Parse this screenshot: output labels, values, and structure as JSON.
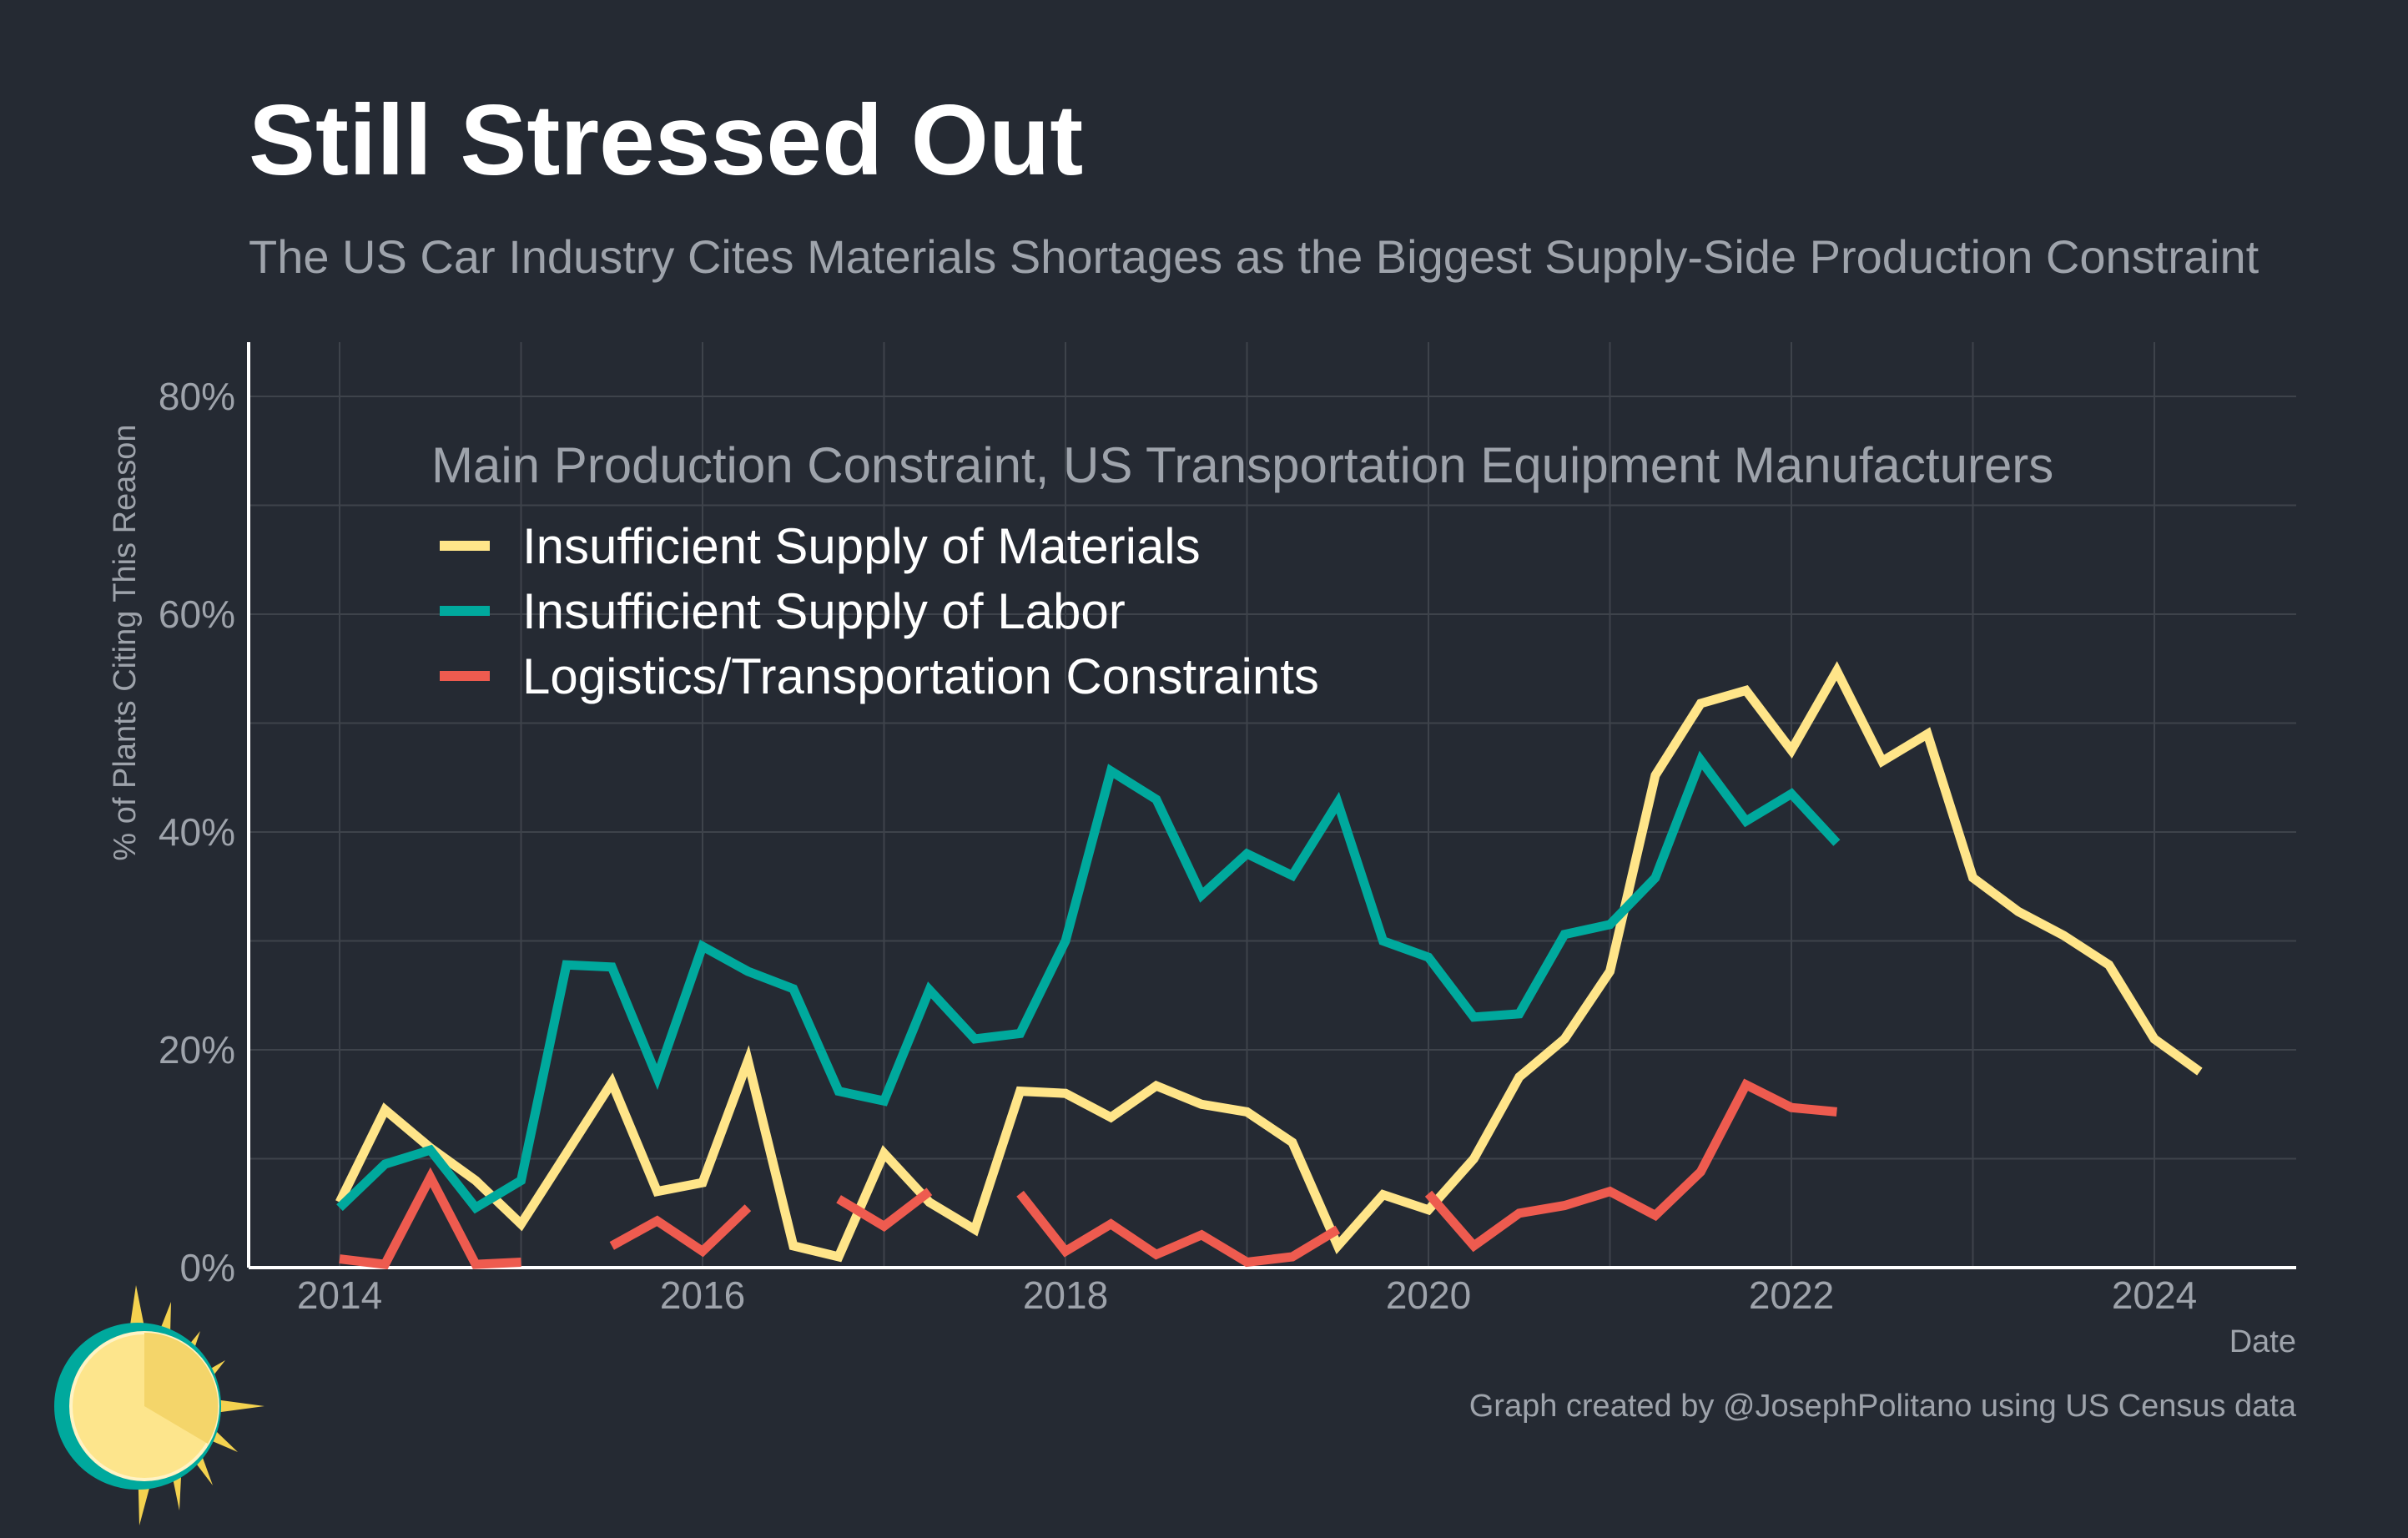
{
  "title": "Still Stressed Out",
  "subtitle": "The US Car Industry Cites Materials Shortages as the Biggest Supply-Side Production Constraint",
  "caption": "Graph created by @JosephPolitano using US Census data",
  "colors": {
    "background": "#252a33",
    "materials": "#ffe589",
    "labor": "#00a99d",
    "logistics": "#ee5b4f",
    "grid": "#3e434b",
    "axis": "#ffffff",
    "muted": "#9ea3ab"
  },
  "icons": {
    "logo": "sun-logo-icon"
  },
  "chart_data": {
    "type": "line",
    "title": "",
    "xlabel": "Date",
    "ylabel": "% of Plants Citing This Reason",
    "xlim": [
      2013.5,
      2024.75
    ],
    "ylim": [
      0,
      0.85
    ],
    "x_ticks": [
      2014,
      2016,
      2018,
      2020,
      2022,
      2024
    ],
    "x_tick_labels": [
      "2014",
      "2016",
      "2018",
      "2020",
      "2022",
      "2024"
    ],
    "y_ticks": [
      0,
      0.2,
      0.4,
      0.6,
      0.8
    ],
    "y_tick_labels": [
      "0%",
      "20%",
      "40%",
      "60%",
      "80%"
    ],
    "grid": true,
    "legend": {
      "title": "Main Production Constraint, US Transportation Equipment Manufacturers",
      "position": "top-left"
    },
    "series": [
      {
        "name": "Insufficient Supply of Materials",
        "color": "#ffe589",
        "x": [
          2014,
          2014.25,
          2014.5,
          2014.75,
          2015,
          2015.25,
          2015.5,
          2015.75,
          2016,
          2016.25,
          2016.5,
          2016.75,
          2017,
          2017.25,
          2017.5,
          2017.75,
          2018,
          2018.25,
          2018.5,
          2018.75,
          2019,
          2019.25,
          2019.5,
          2019.75,
          2020,
          2020.25,
          2020.5,
          2020.75,
          2021,
          2021.25,
          2021.5,
          2021.75,
          2022,
          2022.25,
          2022.5,
          2022.75,
          2023,
          2023.25,
          2023.5,
          2023.75,
          2024,
          2024.25
        ],
        "y": [
          0.06,
          0.145,
          0.11,
          0.08,
          0.04,
          0.105,
          0.17,
          0.07,
          0.078,
          0.19,
          0.02,
          0.01,
          0.105,
          0.06,
          0.035,
          0.162,
          0.16,
          0.138,
          0.167,
          0.15,
          0.143,
          0.115,
          0.02,
          0.067,
          0.053,
          0.1,
          0.175,
          0.21,
          0.272,
          0.452,
          0.518,
          0.53,
          0.475,
          0.548,
          0.465,
          0.49,
          0.358,
          0.327,
          0.305,
          0.278,
          0.21,
          0.18
        ]
      },
      {
        "name": "Insufficient Supply of Labor",
        "color": "#00a99d",
        "x": [
          2014,
          2014.25,
          2014.5,
          2014.75,
          2015,
          2015.25,
          2015.5,
          2015.75,
          2016,
          2016.25,
          2016.5,
          2016.75,
          2017,
          2017.25,
          2017.5,
          2017.75,
          2018,
          2018.25,
          2018.5,
          2018.75,
          2019,
          2019.25,
          2019.5,
          2019.75,
          2020,
          2020.25,
          2020.5,
          2020.75,
          2021,
          2021.25,
          2021.5,
          2021.75,
          2022,
          2022.25
        ],
        "y": [
          0.055,
          0.095,
          0.108,
          0.055,
          0.08,
          0.278,
          0.276,
          0.175,
          0.295,
          0.272,
          0.256,
          0.162,
          0.153,
          0.255,
          0.21,
          0.215,
          0.3,
          0.456,
          0.43,
          0.342,
          0.38,
          0.36,
          0.427,
          0.3,
          0.285,
          0.23,
          0.233,
          0.306,
          0.315,
          0.358,
          0.466,
          0.41,
          0.435,
          0.39
        ]
      },
      {
        "name": "Logistics/Transportation Constraints",
        "color": "#ee5b4f",
        "x": [
          2014,
          2014.25,
          2014.5,
          2014.75,
          2015,
          null,
          2015.5,
          2015.75,
          2016,
          2016.25,
          null,
          2016.75,
          2017,
          2017.25,
          null,
          2017.75,
          2018,
          2018.25,
          2018.5,
          2018.75,
          2019,
          2019.25,
          2019.5,
          null,
          2020,
          2020.25,
          2020.5,
          2020.75,
          2021,
          2021.25,
          2021.5,
          2021.75,
          2022,
          2022.25
        ],
        "y": [
          0.008,
          0.003,
          0.083,
          0.003,
          0.005,
          null,
          0.02,
          0.043,
          0.015,
          0.055,
          null,
          0.063,
          0.038,
          0.07,
          null,
          0.068,
          0.015,
          0.04,
          0.012,
          0.03,
          0.005,
          0.01,
          0.035,
          null,
          0.068,
          0.02,
          0.05,
          0.057,
          0.07,
          0.048,
          0.088,
          0.168,
          0.147,
          0.143
        ]
      }
    ]
  }
}
